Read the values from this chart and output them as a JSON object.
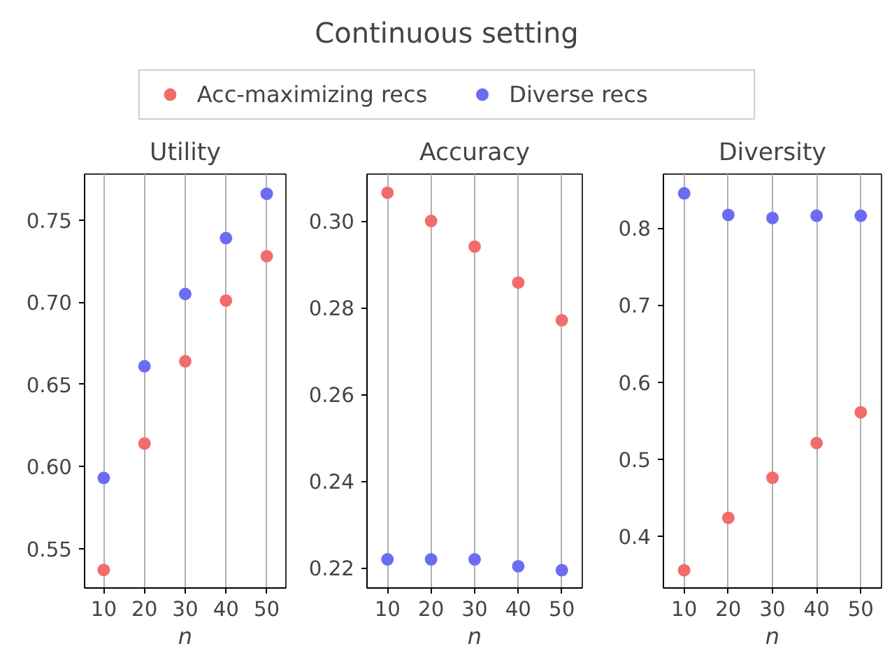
{
  "chart_data": [
    {
      "type": "scatter",
      "title": "Utility",
      "xlabel": "n",
      "annotations": [
        "Continuous setting"
      ],
      "legend": "top",
      "grid": "x",
      "marker": "circle",
      "x": [
        10,
        20,
        30,
        40,
        50
      ],
      "xlim": [
        5.3,
        54.7
      ],
      "xticks": [
        10,
        20,
        30,
        40,
        50
      ],
      "ylim": [
        0.526,
        0.778
      ],
      "yticks": [
        {
          "value": 0.55,
          "label": "0.55"
        },
        {
          "value": 0.6,
          "label": "0.60"
        },
        {
          "value": 0.65,
          "label": "0.65"
        },
        {
          "value": 0.7,
          "label": "0.70"
        },
        {
          "value": 0.75,
          "label": "0.75"
        }
      ],
      "series": [
        {
          "name": "Acc-maximizing recs",
          "color": "#f36c6c",
          "values": [
            0.537,
            0.614,
            0.664,
            0.701,
            0.728
          ]
        },
        {
          "name": "Diverse recs",
          "color": "#6c6cf3",
          "values": [
            0.593,
            0.661,
            0.705,
            0.739,
            0.766
          ]
        }
      ]
    },
    {
      "type": "scatter",
      "title": "Accuracy",
      "xlabel": "n",
      "grid": "x",
      "marker": "circle",
      "x": [
        10,
        20,
        30,
        40,
        50
      ],
      "xlim": [
        5.3,
        54.7
      ],
      "xticks": [
        10,
        20,
        30,
        40,
        50
      ],
      "ylim": [
        0.2154,
        0.3108
      ],
      "yticks": [
        {
          "value": 0.22,
          "label": "0.22"
        },
        {
          "value": 0.24,
          "label": "0.24"
        },
        {
          "value": 0.26,
          "label": "0.26"
        },
        {
          "value": 0.28,
          "label": "0.28"
        },
        {
          "value": 0.3,
          "label": "0.30"
        }
      ],
      "series": [
        {
          "color": "#f36c6c",
          "values": [
            0.3065,
            0.3,
            0.2941,
            0.2858,
            0.2771
          ]
        },
        {
          "color": "#6c6cf3",
          "values": [
            0.222,
            0.222,
            0.222,
            0.2204,
            0.2195
          ]
        }
      ]
    },
    {
      "type": "scatter",
      "title": "Diversity",
      "xlabel": "n",
      "grid": "x",
      "marker": "circle",
      "x": [
        10,
        20,
        30,
        40,
        50
      ],
      "xlim": [
        5.3,
        54.7
      ],
      "xticks": [
        10,
        20,
        30,
        40,
        50
      ],
      "ylim": [
        0.333,
        0.87
      ],
      "yticks": [
        0.4,
        0.5,
        0.6,
        0.7,
        0.8
      ],
      "series": [
        {
          "color": "#f36c6c",
          "values": [
            0.356,
            0.424,
            0.476,
            0.521,
            0.561
          ]
        },
        {
          "color": "#6c6cf3",
          "values": [
            0.845,
            0.817,
            0.813,
            0.816,
            0.816
          ]
        }
      ]
    }
  ]
}
